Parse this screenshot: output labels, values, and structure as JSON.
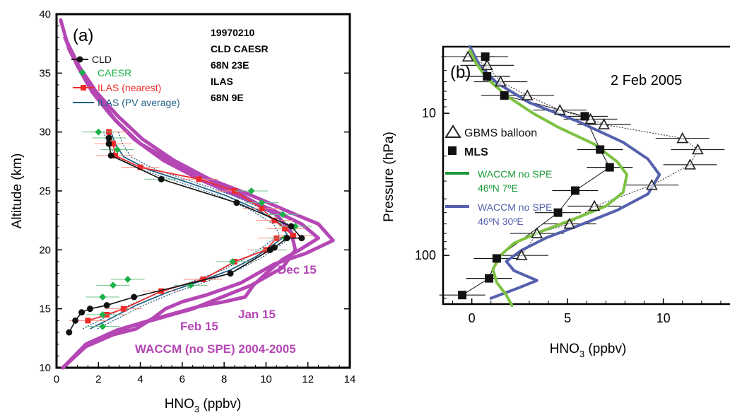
{
  "chart_data": [
    {
      "type": "line",
      "panel_label": "(a)",
      "xlabel": "HNO3 (ppbv)",
      "ylabel": "Altitude (km)",
      "xlim": [
        0,
        14
      ],
      "ylim": [
        10,
        40
      ],
      "x_ticks": [
        "0",
        "2",
        "4",
        "6",
        "8",
        "10",
        "12",
        "14"
      ],
      "y_ticks": [
        "10",
        "15",
        "20",
        "25",
        "30",
        "35",
        "40"
      ],
      "info_lines": [
        "19970210",
        "CLD CAESR",
        "68N 23E",
        "ILAS",
        "68N 9E"
      ],
      "legend_position": "top-left",
      "colors": {
        "cld": "#111111",
        "caesr": "#1db14b",
        "ilas_nearest": "#ee2b2b",
        "ilas_pv": "#1f5f86",
        "waccm": "#b547b5"
      },
      "series": [
        {
          "name": "CLD",
          "points": [
            [
              0.6,
              13
            ],
            [
              0.9,
              14
            ],
            [
              1.2,
              14.7
            ],
            [
              1.6,
              15
            ],
            [
              2.4,
              15.3
            ],
            [
              3.7,
              16
            ],
            [
              8.3,
              18
            ],
            [
              10.2,
              20
            ],
            [
              10.4,
              20.2
            ],
            [
              11.0,
              21
            ],
            [
              11.7,
              21
            ],
            [
              11.2,
              22
            ],
            [
              8.6,
              24
            ],
            [
              5.0,
              26
            ],
            [
              2.6,
              28
            ],
            [
              2.5,
              29
            ],
            [
              2.5,
              29.5
            ]
          ]
        },
        {
          "name": "CAESR",
          "points": [
            [
              2.2,
              13.5
            ],
            [
              2.2,
              14.5
            ],
            [
              2.2,
              16
            ],
            [
              2.7,
              17
            ],
            [
              3.4,
              17.5
            ],
            [
              6.4,
              17
            ],
            [
              8.4,
              19
            ],
            [
              10.2,
              20
            ],
            [
              10.9,
              21
            ],
            [
              11.4,
              22
            ],
            [
              10.8,
              23
            ],
            [
              9.8,
              24
            ],
            [
              9.3,
              25
            ],
            [
              5.0,
              26
            ],
            [
              2.9,
              28.5
            ],
            [
              2.5,
              29.5
            ],
            [
              2.0,
              30
            ]
          ]
        },
        {
          "name": "ILAS (nearest)",
          "points": [
            [
              1.5,
              14
            ],
            [
              2.4,
              14.5
            ],
            [
              3.2,
              15
            ],
            [
              5.0,
              16.5
            ],
            [
              7.0,
              17.5
            ],
            [
              8.5,
              19
            ],
            [
              10.0,
              20
            ],
            [
              10.5,
              21
            ],
            [
              11.3,
              21.2
            ],
            [
              10.9,
              21.8
            ],
            [
              10.4,
              22.5
            ],
            [
              9.8,
              23.5
            ],
            [
              8.5,
              25
            ],
            [
              6.8,
              26
            ],
            [
              4.0,
              27
            ],
            [
              2.8,
              28
            ],
            [
              2.7,
              29
            ],
            [
              2.5,
              30
            ]
          ]
        },
        {
          "name": "ILAS (PV average)",
          "points": [
            [
              1.6,
              13.3
            ],
            [
              2.6,
              14.2
            ],
            [
              3.8,
              15.3
            ],
            [
              5.3,
              16.4
            ],
            [
              6.8,
              17.3
            ],
            [
              8.3,
              18.3
            ],
            [
              9.5,
              19.4
            ],
            [
              10.4,
              20.5
            ],
            [
              11.0,
              21.3
            ],
            [
              10.7,
              22.2
            ],
            [
              9.6,
              23.4
            ],
            [
              8.1,
              24.6
            ],
            [
              6.3,
              25.7
            ],
            [
              4.4,
              26.8
            ],
            [
              3.2,
              27.9
            ],
            [
              2.8,
              29
            ],
            [
              2.6,
              30
            ]
          ]
        },
        {
          "name": "Dec 15",
          "points": [
            [
              0.3,
              10
            ],
            [
              1.5,
              12
            ],
            [
              3.5,
              13.5
            ],
            [
              6.5,
              15
            ],
            [
              9.3,
              17
            ],
            [
              10.8,
              18.5
            ],
            [
              11.4,
              20
            ],
            [
              11.2,
              21.5
            ],
            [
              10.5,
              23
            ],
            [
              8.5,
              25
            ],
            [
              6.0,
              27
            ],
            [
              4.0,
              29
            ],
            [
              2.8,
              31
            ],
            [
              2.0,
              33
            ],
            [
              1.2,
              35
            ],
            [
              0.6,
              37
            ],
            [
              0.2,
              39.5
            ]
          ]
        },
        {
          "name": "Jan 15",
          "points": [
            [
              0.3,
              10
            ],
            [
              1.4,
              12
            ],
            [
              2.9,
              13.2
            ],
            [
              5.0,
              14.3
            ],
            [
              6.8,
              15.2
            ],
            [
              8.0,
              15.6
            ],
            [
              9.0,
              16
            ],
            [
              9.4,
              17
            ],
            [
              10.0,
              18
            ],
            [
              10.8,
              19.2
            ],
            [
              11.6,
              20
            ],
            [
              12.5,
              21
            ],
            [
              11.7,
              22.2
            ],
            [
              10.3,
              23.4
            ],
            [
              8.6,
              24.6
            ],
            [
              6.8,
              26
            ],
            [
              5.1,
              27.6
            ],
            [
              3.7,
              29.4
            ],
            [
              2.6,
              31.4
            ],
            [
              1.7,
              33.4
            ],
            [
              1.0,
              35.6
            ],
            [
              0.4,
              38
            ]
          ]
        },
        {
          "name": "Feb 15",
          "points": [
            [
              0.3,
              10
            ],
            [
              1.4,
              11.8
            ],
            [
              2.7,
              12.8
            ],
            [
              3.8,
              13.3
            ],
            [
              4.6,
              14.2
            ],
            [
              5.2,
              15
            ],
            [
              6.0,
              15.6
            ],
            [
              7.2,
              16.2
            ],
            [
              8.8,
              17.2
            ],
            [
              10.4,
              18.8
            ],
            [
              11.9,
              19.7
            ],
            [
              13.2,
              20.8
            ],
            [
              12.5,
              22.2
            ],
            [
              11.0,
              23.3
            ],
            [
              9.2,
              24.7
            ],
            [
              7.3,
              26
            ],
            [
              5.6,
              27.6
            ],
            [
              4.1,
              29.4
            ],
            [
              2.9,
              31.4
            ],
            [
              1.9,
              33.4
            ],
            [
              1.1,
              35.5
            ],
            [
              0.4,
              38
            ]
          ]
        }
      ],
      "annotations": [
        "Dec 15",
        "Jan 15",
        "Feb 15",
        "WACCM (no SPE) 2004-2005"
      ]
    },
    {
      "type": "line",
      "panel_label": "(b)",
      "date_label": "2 Feb 2005",
      "xlabel": "HNO3 (ppbv)",
      "ylabel": "Pressure (hPa)",
      "xlim": [
        -1.5,
        14
      ],
      "ylim": [
        220,
        3.4
      ],
      "y_scale": "log",
      "x_ticks": [
        "0",
        "5",
        "10"
      ],
      "y_ticks": [
        "10",
        "100"
      ],
      "legend_position": "left",
      "colors": {
        "gbms": "#222222",
        "mls": "#111111",
        "waccm_7e": "#7dc242",
        "waccm_30e": "#5561ad",
        "waccm_7e_legend": "#1a9a3a"
      },
      "series": [
        {
          "name": "GBMS balloon",
          "marker": "open-triangle",
          "points": [
            [
              -0.2,
              4
            ],
            [
              0.8,
              4.6
            ],
            [
              1.5,
              6
            ],
            [
              2.9,
              7.5
            ],
            [
              4.6,
              9.5
            ],
            [
              6.2,
              11
            ],
            [
              6.9,
              12
            ],
            [
              11.0,
              15
            ],
            [
              11.8,
              18
            ],
            [
              11.4,
              23
            ],
            [
              9.4,
              32
            ],
            [
              6.4,
              45
            ],
            [
              5.1,
              60
            ],
            [
              3.4,
              70
            ],
            [
              2.6,
              100
            ]
          ]
        },
        {
          "name": "MLS",
          "marker": "filled-square",
          "points": [
            [
              0.7,
              4
            ],
            [
              0.8,
              5.5
            ],
            [
              1.7,
              7.5
            ],
            [
              5.9,
              10.5
            ],
            [
              6.7,
              18
            ],
            [
              7.2,
              24
            ],
            [
              5.4,
              35
            ],
            [
              4.5,
              50
            ],
            [
              1.3,
              105
            ],
            [
              0.9,
              145
            ],
            [
              -0.5,
              190
            ]
          ]
        },
        {
          "name": "WACCM no SPE 46ºN 7ºE",
          "points": [
            [
              -0.1,
              3.6
            ],
            [
              0.2,
              4.4
            ],
            [
              0.8,
              5.7
            ],
            [
              1.8,
              7.5
            ],
            [
              3.2,
              10
            ],
            [
              4.5,
              12.5
            ],
            [
              6.4,
              16.5
            ],
            [
              7.6,
              22
            ],
            [
              8.1,
              27
            ],
            [
              7.9,
              36
            ],
            [
              7.0,
              45
            ],
            [
              5.4,
              55
            ],
            [
              3.6,
              68
            ],
            [
              2.2,
              82
            ],
            [
              1.5,
              100
            ],
            [
              1.1,
              125
            ],
            [
              1.3,
              155
            ],
            [
              1.8,
              190
            ],
            [
              2.1,
              225
            ]
          ]
        },
        {
          "name": "WACCM no SPE 46ºN 30ºE",
          "points": [
            [
              -0.1,
              3.4
            ],
            [
              0.4,
              4.6
            ],
            [
              1.3,
              6.1
            ],
            [
              3.0,
              8.4
            ],
            [
              5.6,
              11.5
            ],
            [
              7.9,
              16
            ],
            [
              9.2,
              21
            ],
            [
              9.8,
              27
            ],
            [
              9.2,
              37
            ],
            [
              7.6,
              48
            ],
            [
              5.8,
              60
            ],
            [
              3.9,
              75
            ],
            [
              2.6,
              92
            ],
            [
              1.8,
              110
            ],
            [
              2.2,
              128
            ],
            [
              3.4,
              150
            ],
            [
              2.4,
              170
            ],
            [
              1.0,
              200
            ]
          ]
        }
      ],
      "legend": [
        {
          "label": "GBMS balloon"
        },
        {
          "label": "MLS"
        },
        {
          "label": "WACCM no SPE",
          "sublabel": "46ºN 7ºE"
        },
        {
          "label": "WACCM no SPE",
          "sublabel": "46ºN 30ºE"
        }
      ]
    }
  ]
}
